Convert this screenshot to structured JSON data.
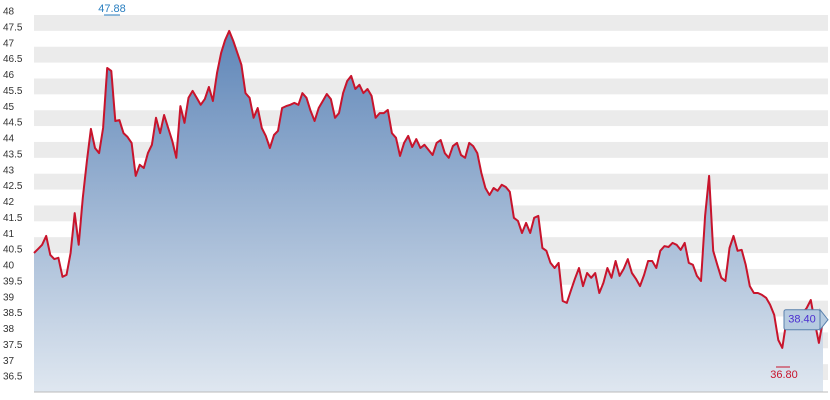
{
  "chart_data": {
    "type": "area",
    "line_color": "#c8142c",
    "fill_top": "#5f86b8",
    "fill_bottom": "#dfe7f0",
    "band_color": "#ebebeb",
    "grid": true,
    "ylim": [
      36.5,
      48
    ],
    "yticks": [
      36.5,
      37,
      37.5,
      38,
      38.5,
      39,
      39.5,
      40,
      40.5,
      41,
      41.5,
      42,
      42.5,
      43,
      43.5,
      44,
      44.5,
      45,
      45.5,
      46,
      46.5,
      47,
      47.5,
      48
    ],
    "max_label": "47.88",
    "min_label": "36.80",
    "last_label": "38.40",
    "values": [
      40.5,
      40.63,
      40.76,
      41.04,
      40.44,
      40.31,
      40.35,
      39.75,
      39.81,
      40.5,
      41.76,
      40.76,
      42.24,
      43.4,
      44.41,
      43.81,
      43.65,
      44.44,
      46.33,
      46.24,
      44.66,
      44.69,
      44.28,
      44.16,
      43.97,
      42.93,
      43.28,
      43.18,
      43.65,
      43.91,
      44.76,
      44.28,
      44.85,
      44.44,
      44.03,
      43.5,
      45.13,
      44.6,
      45.39,
      45.61,
      45.39,
      45.17,
      45.35,
      45.73,
      45.29,
      46.17,
      46.8,
      47.21,
      47.5,
      47.18,
      46.8,
      46.43,
      45.54,
      45.39,
      44.76,
      45.07,
      44.44,
      44.19,
      43.81,
      44.22,
      44.35,
      45.07,
      45.13,
      45.17,
      45.23,
      45.17,
      45.54,
      45.39,
      44.98,
      44.66,
      45.07,
      45.29,
      45.51,
      45.35,
      44.76,
      44.91,
      45.54,
      45.92,
      46.08,
      45.67,
      45.8,
      45.54,
      45.67,
      45.45,
      44.76,
      44.91,
      44.91,
      45.01,
      44.28,
      44.13,
      43.56,
      43.97,
      44.19,
      43.84,
      44.09,
      43.81,
      43.91,
      43.75,
      43.59,
      43.97,
      44.06,
      43.65,
      43.5,
      43.87,
      43.97,
      43.59,
      43.5,
      43.97,
      43.87,
      43.65,
      43.02,
      42.55,
      42.33,
      42.55,
      42.46,
      42.65,
      42.58,
      42.43,
      41.61,
      41.51,
      41.13,
      41.45,
      41.13,
      41.61,
      41.67,
      40.66,
      40.57,
      40.19,
      40.03,
      40.19,
      38.99,
      38.93,
      39.31,
      39.69,
      40.03,
      39.46,
      39.87,
      39.72,
      39.87,
      39.24,
      39.56,
      40.03,
      39.72,
      40.25,
      39.78,
      40.0,
      40.31,
      39.87,
      39.69,
      39.46,
      39.81,
      40.25,
      40.25,
      40.03,
      40.57,
      40.72,
      40.69,
      40.82,
      40.76,
      40.6,
      40.82,
      40.19,
      40.13,
      39.78,
      39.62,
      41.67,
      42.93,
      40.57,
      40.13,
      39.72,
      39.62,
      40.66,
      41.04,
      40.57,
      40.6,
      40.13,
      39.46,
      39.24,
      39.24,
      39.18,
      39.09,
      38.87,
      38.55,
      37.76,
      37.51,
      38.36,
      38.14,
      38.24,
      38.39,
      38.61,
      38.77,
      39.02,
      38.3,
      37.67,
      38.4
    ]
  }
}
